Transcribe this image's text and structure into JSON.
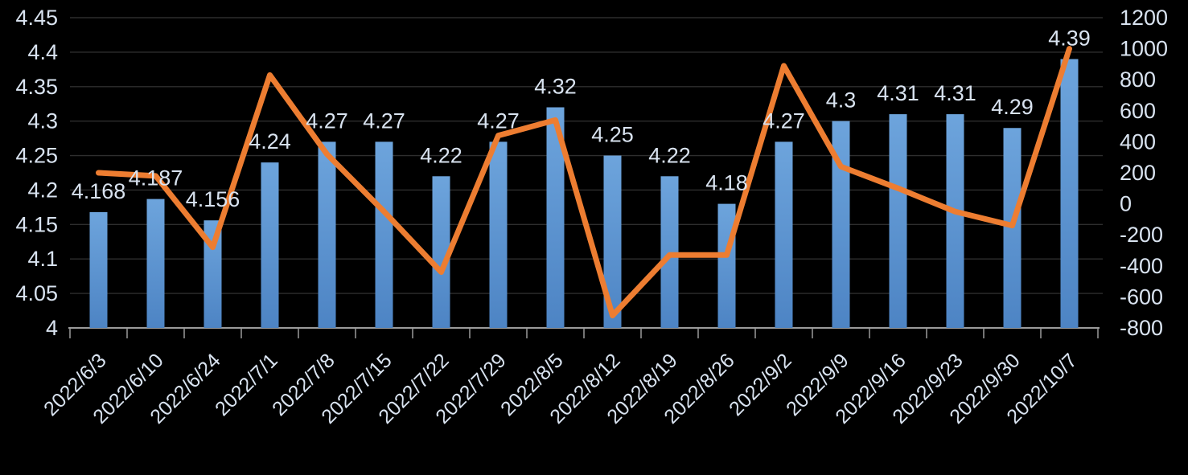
{
  "chart_data": {
    "type": "combo",
    "title": "",
    "categories": [
      "2022/6/3",
      "2022/6/10",
      "2022/6/24",
      "2022/7/1",
      "2022/7/8",
      "2022/7/15",
      "2022/7/22",
      "2022/7/29",
      "2022/8/5",
      "2022/8/12",
      "2022/8/19",
      "2022/8/26",
      "2022/9/2",
      "2022/9/9",
      "2022/9/16",
      "2022/9/23",
      "2022/9/30",
      "2022/10/7"
    ],
    "series": [
      {
        "name": "bars",
        "type": "bar",
        "axis": "left",
        "values": [
          4.168,
          4.187,
          4.156,
          4.24,
          4.27,
          4.27,
          4.22,
          4.27,
          4.32,
          4.25,
          4.22,
          4.18,
          4.27,
          4.3,
          4.31,
          4.31,
          4.29,
          4.39
        ],
        "labels": [
          "4.168",
          "4.187",
          "4.156",
          "4.24",
          "4.27",
          "4.27",
          "4.22",
          "4.27",
          "4.32",
          "4.25",
          "4.22",
          "4.18",
          "4.27",
          "4.3",
          "4.31",
          "4.31",
          "4.29",
          "4.39"
        ]
      },
      {
        "name": "line",
        "type": "line",
        "axis": "right",
        "values": [
          200,
          180,
          -280,
          830,
          320,
          -50,
          -440,
          440,
          540,
          -720,
          -330,
          -330,
          890,
          240,
          100,
          -50,
          -140,
          1000
        ]
      }
    ],
    "left_axis": {
      "min": 4,
      "max": 4.45,
      "step": 0.05,
      "ticks": [
        "4.45",
        "4.4",
        "4.35",
        "4.3",
        "4.25",
        "4.2",
        "4.15",
        "4.1",
        "4.05",
        "4"
      ]
    },
    "right_axis": {
      "min": -800,
      "max": 1200,
      "step": 200,
      "ticks": [
        "1200",
        "1000",
        "800",
        "600",
        "400",
        "200",
        "0",
        "-200",
        "-400",
        "-600",
        "-800"
      ]
    },
    "grid": true,
    "legend_position": "none"
  },
  "colors": {
    "background": "#000000",
    "bar_top": "#6DA4DC",
    "bar_bottom": "#4D84C4",
    "line": "#ED7D31",
    "text": "#D9E3F0",
    "gridline": "#2E2E2E",
    "axis_line": "#9B9B9B"
  }
}
